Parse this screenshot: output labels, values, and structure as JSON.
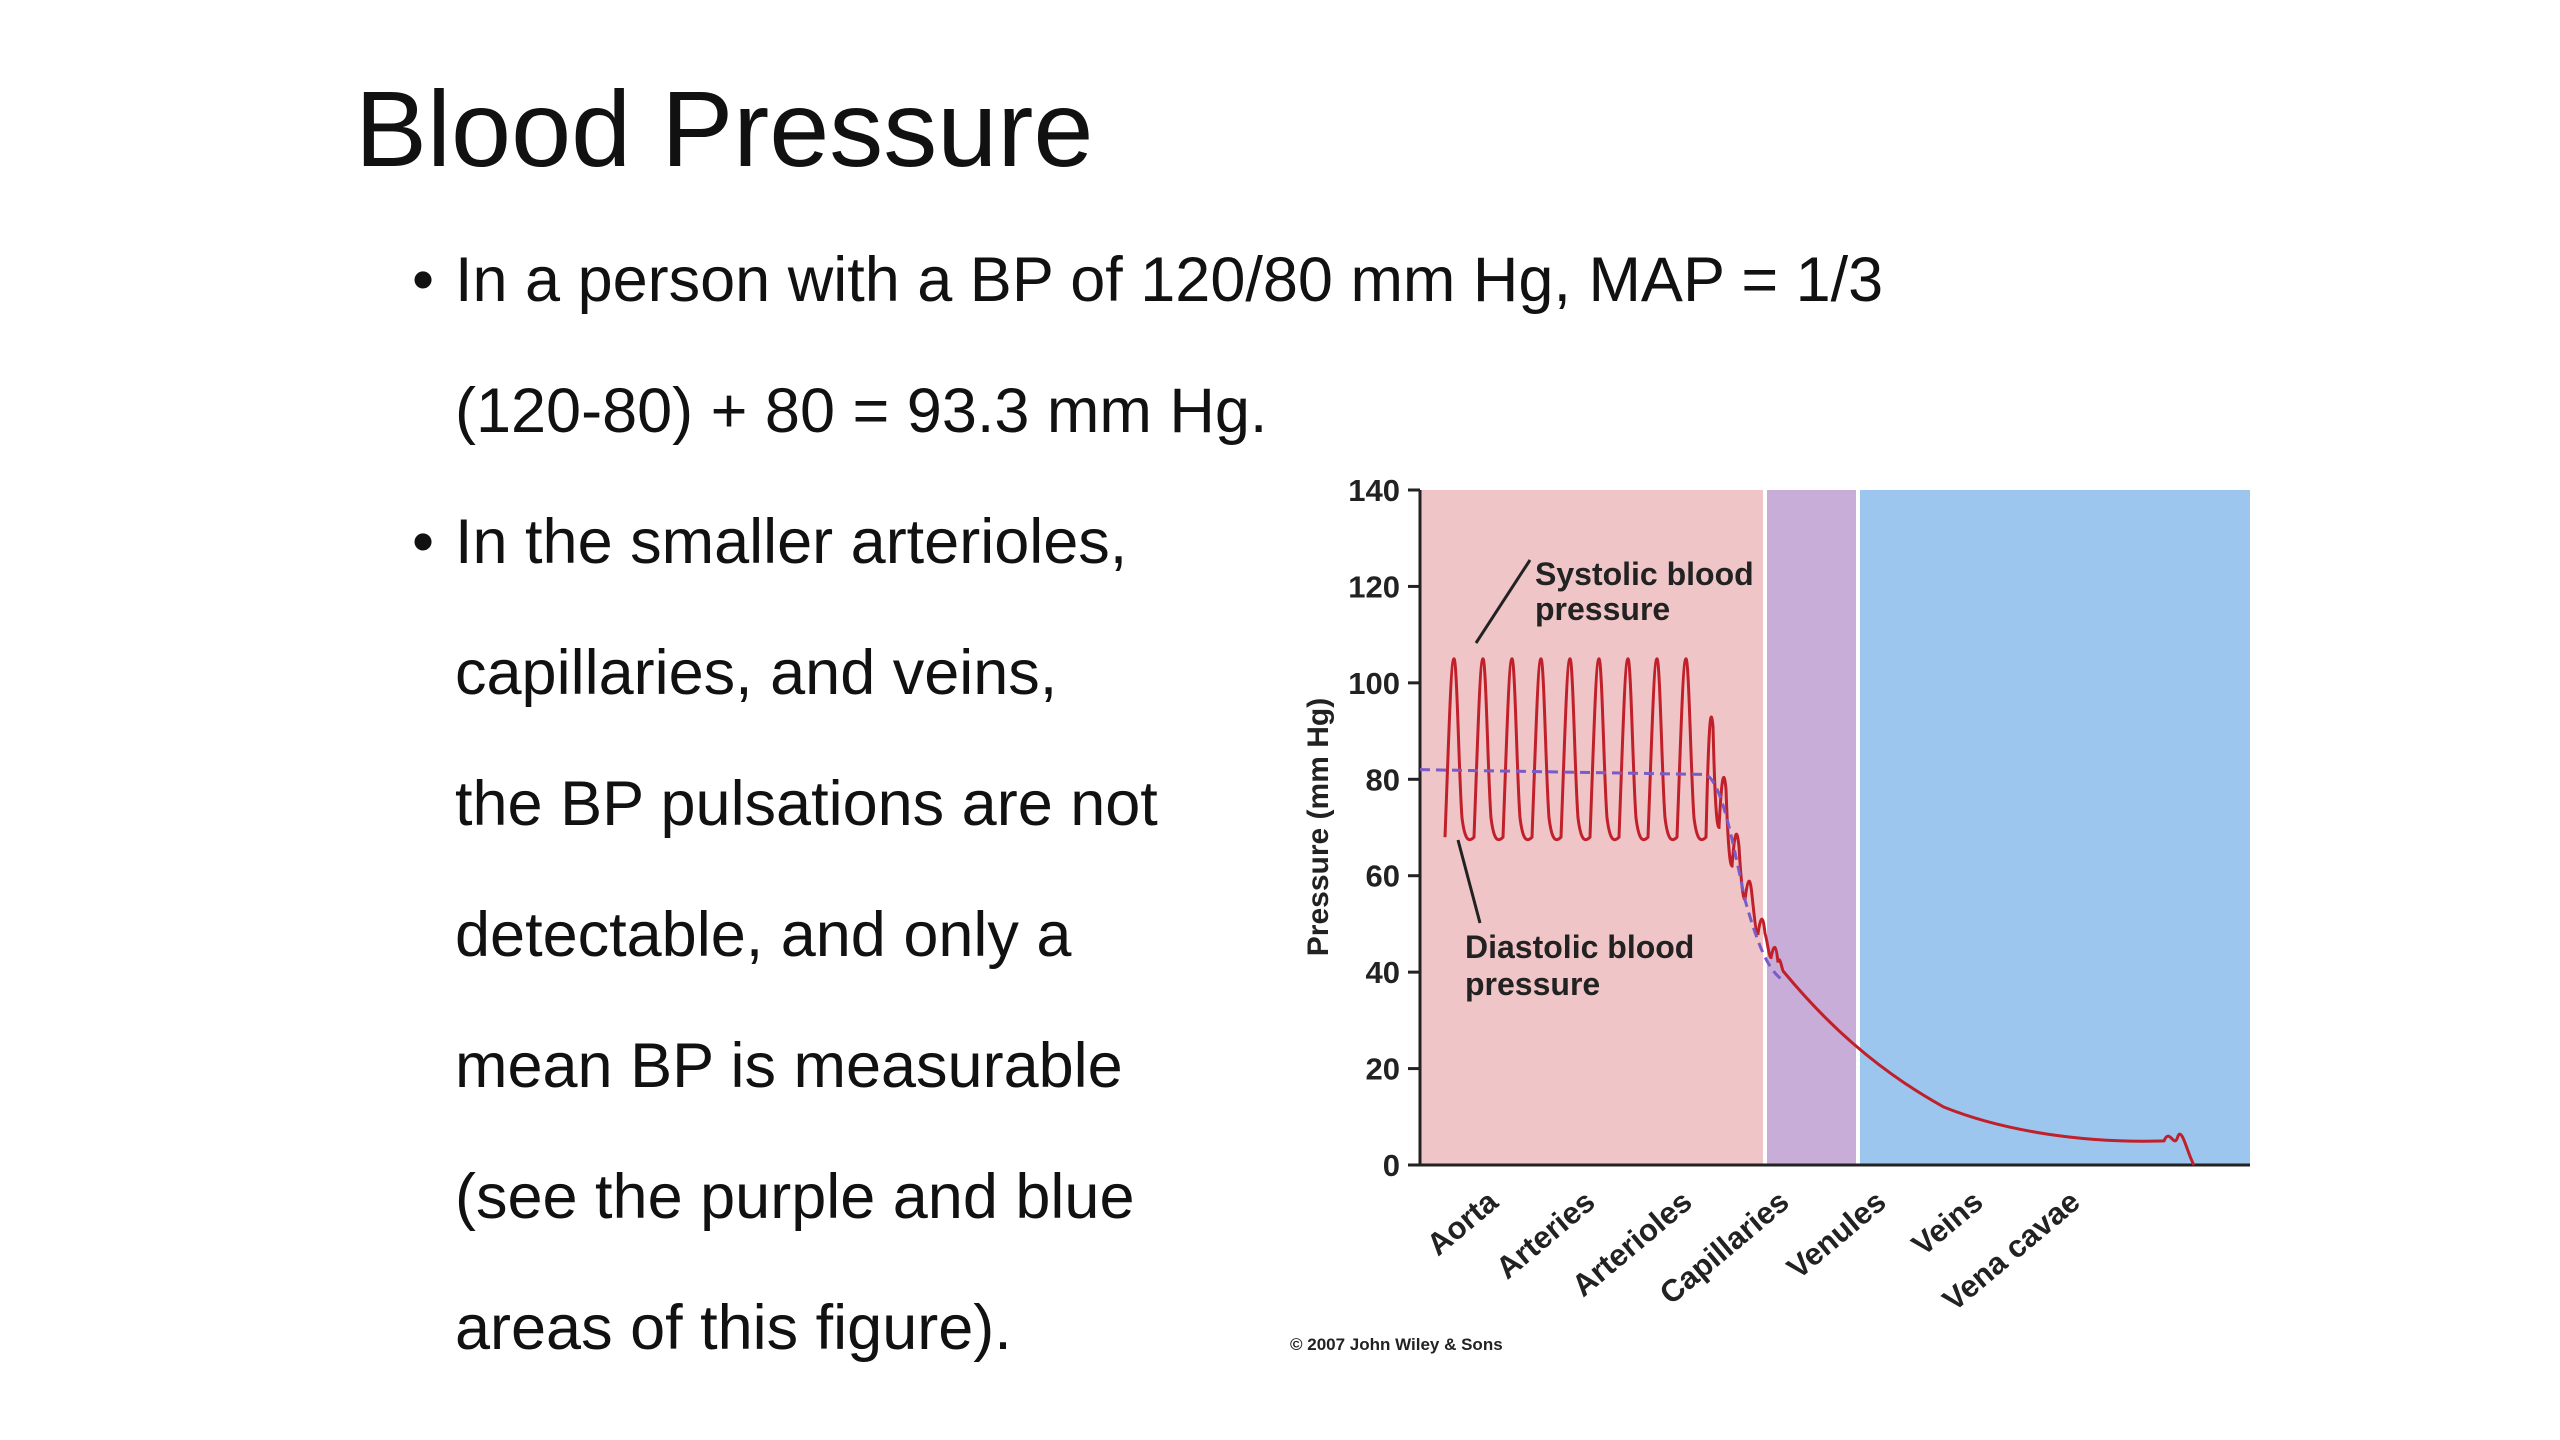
{
  "slide": {
    "title": "Blood Pressure",
    "bullets": [
      {
        "lines": [
          "In a person with a BP of 120/80 mm Hg, MAP = 1/3",
          "(120-80) + 80 = 93.3 mm Hg."
        ]
      },
      {
        "lines": [
          "In the smaller arterioles,",
          "capillaries, and veins,",
          "the BP pulsations are not",
          "detectable, and only a",
          "mean BP is measurable",
          "(see the purple and blue",
          "areas of this figure)."
        ]
      }
    ],
    "bullet_symbol": "•"
  },
  "chart_data": {
    "type": "line",
    "title": "",
    "xlabel": "",
    "ylabel": "Pressure (mm Hg)",
    "ylim": [
      0,
      140
    ],
    "yticks": [
      0,
      20,
      40,
      60,
      80,
      100,
      120,
      140
    ],
    "categories": [
      "Aorta",
      "Arteries",
      "Arterioles",
      "Capillaries",
      "Venules",
      "Veins",
      "Vena cavae"
    ],
    "regions": [
      {
        "name": "Aorta–Arterioles",
        "color": "#EFC5C8"
      },
      {
        "name": "Capillaries",
        "color": "#C9ADD9"
      },
      {
        "name": "Venules–Vena cavae",
        "color": "#9DC6EF"
      }
    ],
    "series": [
      {
        "name": "Systolic blood pressure",
        "color": "#C0202A",
        "description": "oscillating, peaks near 105"
      },
      {
        "name": "Diastolic blood pressure",
        "color": "#C0202A",
        "description": "oscillation troughs near 68"
      },
      {
        "name": "Mean",
        "color": "#7B5CC7",
        "dashed": true,
        "points": [
          [
            0,
            82
          ],
          [
            1,
            81.5
          ],
          [
            2,
            79
          ],
          [
            2.5,
            40
          ],
          [
            3,
            22
          ],
          [
            4,
            8
          ],
          [
            5,
            5
          ],
          [
            6,
            0
          ]
        ]
      }
    ],
    "annotations": [
      {
        "text_lines": [
          "Systolic blood",
          "pressure"
        ]
      },
      {
        "text_lines": [
          "Diastolic blood",
          "pressure"
        ]
      }
    ],
    "copyright": "© 2007 John Wiley & Sons"
  }
}
